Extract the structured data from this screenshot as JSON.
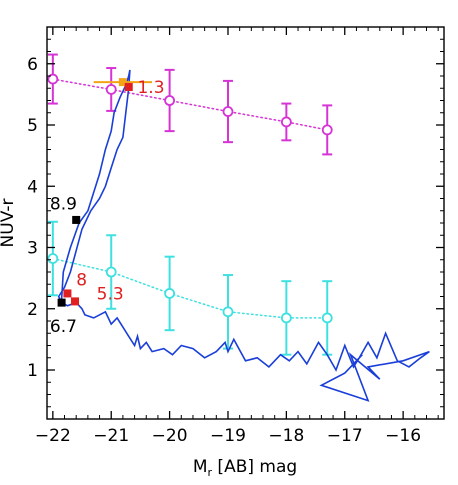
{
  "chart_data": {
    "type": "scatter",
    "title": "",
    "xlabel": "M_r [AB] mag",
    "xlabel_parts": {
      "main": "M",
      "sub": "r",
      "rest": " [AB] mag"
    },
    "ylabel": "NUV-r",
    "xlim": [
      -22.1,
      -15.3
    ],
    "ylim": [
      0.2,
      6.6
    ],
    "xticks": [
      -22,
      -21,
      -20,
      -19,
      -18,
      -17,
      -16
    ],
    "xtick_labels": [
      "−22",
      "−21",
      "−20",
      "−19",
      "−18",
      "−17",
      "−16"
    ],
    "yticks": [
      1,
      2,
      3,
      4,
      5,
      6
    ],
    "ytick_labels": [
      "1",
      "2",
      "3",
      "4",
      "5",
      "6"
    ],
    "grid": false,
    "series": [
      {
        "color": "#d633d6",
        "marker": "open-circle",
        "linestyle": "dotted",
        "x": [
          -22.0,
          -21.0,
          -20.0,
          -19.0,
          -18.0,
          -17.3
        ],
        "y": [
          5.75,
          5.58,
          5.4,
          5.22,
          5.05,
          4.92
        ],
        "yerr": [
          0.4,
          0.35,
          0.5,
          0.5,
          0.3,
          0.4
        ]
      },
      {
        "color": "#3ee0e0",
        "marker": "open-circle",
        "linestyle": "dotted",
        "x": [
          -22.0,
          -21.0,
          -20.0,
          -19.0,
          -18.0,
          -17.3
        ],
        "y": [
          2.82,
          2.6,
          2.25,
          1.95,
          1.85,
          1.85
        ],
        "yerr": [
          0.6,
          0.6,
          0.6,
          0.6,
          0.6,
          0.6
        ]
      },
      {
        "color": "#1a3fd9",
        "linestyle": "solid",
        "x": [
          -21.85,
          -21.82,
          -21.7,
          -21.55,
          -21.4,
          -21.3,
          -21.2,
          -21.1,
          -21.0,
          -20.95,
          -20.85,
          -20.75,
          -20.7,
          -20.68,
          -20.7,
          -20.75,
          -20.8,
          -20.9,
          -21.0,
          -21.1,
          -21.2,
          -21.35,
          -21.5,
          -21.6,
          -21.7,
          -21.8,
          -21.9,
          -21.85,
          -21.75,
          -21.6,
          -21.5,
          -21.45,
          -21.3,
          -21.1,
          -21.0,
          -20.9,
          -20.8,
          -20.7,
          -20.6,
          -20.55,
          -20.5,
          -20.4,
          -20.3,
          -20.1,
          -19.95,
          -19.8,
          -19.6,
          -19.4,
          -19.2,
          -19.05,
          -19.0,
          -18.9,
          -18.7,
          -18.5,
          -18.3,
          -18.1,
          -17.95,
          -17.8,
          -17.65,
          -17.45,
          -17.3,
          -17.15,
          -17.0,
          -16.85,
          -16.75,
          -16.6,
          -16.45,
          -16.3,
          -16.1,
          -15.9,
          -15.7,
          -15.55,
          -16.0,
          -16.6,
          -16.4,
          -16.9,
          -16.6,
          -17.4,
          -17.0,
          -16.7
        ],
        "y": [
          2.15,
          2.6,
          3.0,
          3.4,
          3.6,
          3.9,
          4.2,
          4.6,
          4.9,
          5.2,
          5.45,
          5.65,
          5.8,
          5.9,
          5.6,
          5.2,
          4.8,
          4.6,
          4.3,
          4.0,
          3.8,
          3.6,
          3.3,
          2.95,
          2.6,
          2.35,
          2.2,
          2.1,
          2.05,
          2.1,
          2.0,
          1.9,
          1.85,
          1.95,
          1.75,
          1.85,
          1.7,
          1.55,
          1.4,
          1.55,
          1.35,
          1.45,
          1.3,
          1.35,
          1.25,
          1.4,
          1.35,
          1.2,
          1.3,
          1.45,
          1.3,
          1.5,
          1.15,
          1.2,
          1.05,
          1.25,
          1.15,
          1.3,
          1.1,
          1.45,
          1.25,
          1.0,
          1.4,
          1.05,
          1.2,
          1.45,
          1.2,
          1.6,
          1.15,
          1.05,
          1.2,
          1.3,
          1.15,
          1.05,
          0.85,
          1.25,
          0.5,
          0.75,
          0.95,
          1.25
        ]
      }
    ],
    "points": [
      {
        "x": -20.8,
        "y": 5.7,
        "color": "#f5a316",
        "shape": "square",
        "xerr": 0.5
      },
      {
        "x": -20.7,
        "y": 5.62,
        "color": "#e02020",
        "shape": "square"
      },
      {
        "x": -21.6,
        "y": 3.45,
        "color": "#000000",
        "shape": "square"
      },
      {
        "x": -21.85,
        "y": 2.1,
        "color": "#000000",
        "shape": "square"
      },
      {
        "x": -21.75,
        "y": 2.25,
        "color": "#e02020",
        "shape": "square"
      },
      {
        "x": -21.62,
        "y": 2.12,
        "color": "#e02020",
        "shape": "square"
      }
    ],
    "annotations": [
      {
        "text": "1.3",
        "x": -20.55,
        "y": 5.52,
        "color": "#e02020"
      },
      {
        "text": "8.9",
        "x": -22.05,
        "y": 3.62,
        "color": "#000000"
      },
      {
        "text": "8",
        "x": -21.6,
        "y": 2.38,
        "color": "#e02020"
      },
      {
        "text": "5.3",
        "x": -21.25,
        "y": 2.15,
        "color": "#e02020"
      },
      {
        "text": "6.7",
        "x": -22.05,
        "y": 1.62,
        "color": "#000000"
      }
    ]
  }
}
